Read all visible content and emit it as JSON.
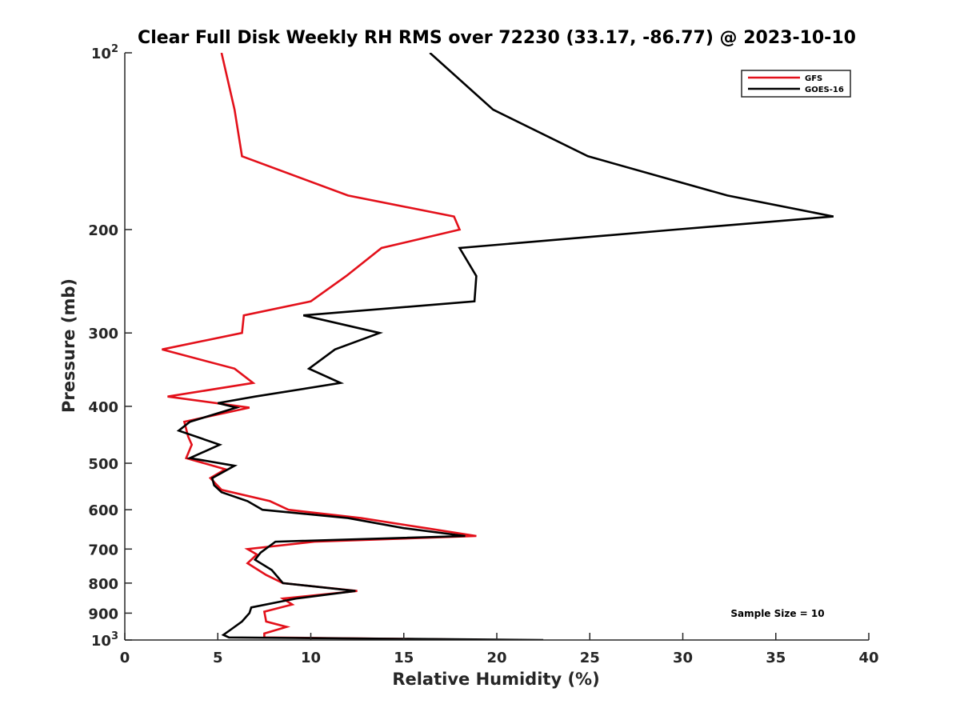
{
  "chart_data": {
    "type": "line",
    "title": "Clear Full Disk Weekly RH RMS over 72230 (33.17, -86.77) @ 2023-10-10",
    "xlabel": "Relative Humidity (%)",
    "ylabel": "Pressure (mb)",
    "xlim": [
      0,
      40
    ],
    "ylim": [
      1000,
      100
    ],
    "yscale": "log",
    "y_reversed": true,
    "x_ticks": [
      0,
      5,
      10,
      15,
      20,
      25,
      30,
      35,
      40
    ],
    "y_ticks": [
      {
        "value": 100,
        "base": "10",
        "exp": "2"
      },
      {
        "value": 200,
        "label": "200"
      },
      {
        "value": 300,
        "label": "300"
      },
      {
        "value": 400,
        "label": "400"
      },
      {
        "value": 500,
        "label": "500"
      },
      {
        "value": 600,
        "label": "600"
      },
      {
        "value": 700,
        "label": "700"
      },
      {
        "value": 800,
        "label": "800"
      },
      {
        "value": 900,
        "label": "900"
      },
      {
        "value": 1000,
        "base": "10",
        "exp": "3"
      }
    ],
    "legend_position": "top-right",
    "annotation": "Sample Size = 10",
    "series": [
      {
        "name": "GFS",
        "color": "#e3101a",
        "points": [
          [
            5.2,
            100
          ],
          [
            5.9,
            125
          ],
          [
            6.3,
            150
          ],
          [
            12.0,
            175
          ],
          [
            17.7,
            190
          ],
          [
            18.0,
            200
          ],
          [
            13.8,
            215
          ],
          [
            11.9,
            240
          ],
          [
            10.0,
            265
          ],
          [
            6.4,
            280
          ],
          [
            6.3,
            300
          ],
          [
            2.0,
            320
          ],
          [
            5.9,
            345
          ],
          [
            6.9,
            365
          ],
          [
            2.3,
            385
          ],
          [
            6.7,
            402
          ],
          [
            3.2,
            425
          ],
          [
            3.4,
            450
          ],
          [
            3.6,
            465
          ],
          [
            3.3,
            490
          ],
          [
            5.4,
            512
          ],
          [
            4.6,
            530
          ],
          [
            5.2,
            555
          ],
          [
            7.8,
            580
          ],
          [
            8.8,
            600
          ],
          [
            12.7,
            620
          ],
          [
            16.2,
            645
          ],
          [
            18.9,
            665
          ],
          [
            10.2,
            680
          ],
          [
            6.6,
            700
          ],
          [
            7.1,
            715
          ],
          [
            6.6,
            740
          ],
          [
            7.6,
            775
          ],
          [
            8.5,
            800
          ],
          [
            12.5,
            825
          ],
          [
            8.5,
            850
          ],
          [
            9.0,
            870
          ],
          [
            7.5,
            895
          ],
          [
            7.6,
            930
          ],
          [
            8.7,
            950
          ],
          [
            7.5,
            975
          ],
          [
            7.5,
            990
          ],
          [
            20.5,
            1000
          ]
        ]
      },
      {
        "name": "GOES-16",
        "color": "#000000",
        "points": [
          [
            16.4,
            100
          ],
          [
            19.8,
            125
          ],
          [
            24.9,
            150
          ],
          [
            32.4,
            175
          ],
          [
            38.1,
            190
          ],
          [
            29.6,
            200
          ],
          [
            18.0,
            215
          ],
          [
            18.9,
            240
          ],
          [
            18.8,
            265
          ],
          [
            9.6,
            280
          ],
          [
            13.7,
            300
          ],
          [
            11.3,
            320
          ],
          [
            9.9,
            345
          ],
          [
            11.6,
            365
          ],
          [
            7.0,
            385
          ],
          [
            5.0,
            395
          ],
          [
            6.0,
            402
          ],
          [
            3.5,
            425
          ],
          [
            2.9,
            440
          ],
          [
            5.1,
            465
          ],
          [
            3.5,
            490
          ],
          [
            5.9,
            505
          ],
          [
            4.7,
            530
          ],
          [
            4.8,
            545
          ],
          [
            5.2,
            560
          ],
          [
            6.6,
            580
          ],
          [
            7.4,
            600
          ],
          [
            12.0,
            620
          ],
          [
            15.0,
            645
          ],
          [
            18.3,
            665
          ],
          [
            8.1,
            680
          ],
          [
            7.3,
            710
          ],
          [
            7.0,
            730
          ],
          [
            7.9,
            760
          ],
          [
            8.5,
            800
          ],
          [
            12.4,
            825
          ],
          [
            9.2,
            850
          ],
          [
            8.4,
            860
          ],
          [
            6.8,
            880
          ],
          [
            6.7,
            900
          ],
          [
            6.3,
            930
          ],
          [
            5.7,
            960
          ],
          [
            5.3,
            980
          ],
          [
            5.6,
            990
          ],
          [
            22.5,
            1000
          ]
        ]
      }
    ]
  }
}
